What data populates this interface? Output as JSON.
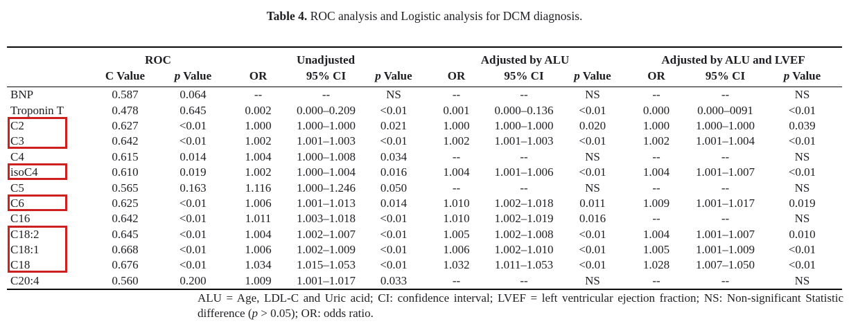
{
  "title": {
    "bold": "Table 4.",
    "rest": " ROC analysis and Logistic analysis for DCM diagnosis."
  },
  "table": {
    "group_headers": [
      {
        "label": "ROC",
        "span": 2
      },
      {
        "label": "Unadjusted",
        "span": 3
      },
      {
        "label": "Adjusted by ALU",
        "span": 3
      },
      {
        "label": "Adjusted by ALU and LVEF",
        "span": 3
      }
    ],
    "sub_headers": [
      "C Value",
      "p Value",
      "OR",
      "95% CI",
      "p Value",
      "OR",
      "95% CI",
      "p Value",
      "OR",
      "95% CI",
      "p Value"
    ],
    "rows": [
      {
        "label": "BNP",
        "values": [
          "0.587",
          "0.064",
          "--",
          "--",
          "NS",
          "--",
          "--",
          "NS",
          "--",
          "--",
          "NS"
        ]
      },
      {
        "label": "Troponin T",
        "values": [
          "0.478",
          "0.645",
          "0.002",
          "0.000–0.209",
          "<0.01",
          "0.001",
          "0.000–0.136",
          "<0.01",
          "0.000",
          "0.000–0091",
          "<0.01"
        ]
      },
      {
        "label": "C2",
        "values": [
          "0.627",
          "<0.01",
          "1.000",
          "1.000–1.000",
          "0.021",
          "1.000",
          "1.000–1.000",
          "0.020",
          "1.000",
          "1.000–1.000",
          "0.039"
        ]
      },
      {
        "label": "C3",
        "values": [
          "0.642",
          "<0.01",
          "1.002",
          "1.001–1.003",
          "<0.01",
          "1.002",
          "1.001–1.003",
          "<0.01",
          "1.002",
          "1.001–1.004",
          "<0.01"
        ]
      },
      {
        "label": "C4",
        "values": [
          "0.615",
          "0.014",
          "1.004",
          "1.000–1.008",
          "0.034",
          "--",
          "--",
          "NS",
          "--",
          "--",
          "NS"
        ]
      },
      {
        "label": "isoC4",
        "values": [
          "0.610",
          "0.019",
          "1.002",
          "1.000–1.004",
          "0.016",
          "1.004",
          "1.001–1.006",
          "<0.01",
          "1.004",
          "1.001–1.007",
          "<0.01"
        ]
      },
      {
        "label": "C5",
        "values": [
          "0.565",
          "0.163",
          "1.116",
          "1.000–1.246",
          "0.050",
          "--",
          "--",
          "NS",
          "--",
          "--",
          "NS"
        ]
      },
      {
        "label": "C6",
        "values": [
          "0.625",
          "<0.01",
          "1.006",
          "1.001–1.013",
          "0.014",
          "1.010",
          "1.002–1.018",
          "0.011",
          "1.009",
          "1.001–1.017",
          "0.019"
        ]
      },
      {
        "label": "C16",
        "values": [
          "0.642",
          "<0.01",
          "1.011",
          "1.003–1.018",
          "<0.01",
          "1.010",
          "1.002–1.019",
          "0.016",
          "--",
          "--",
          "NS"
        ]
      },
      {
        "label": "C18:2",
        "values": [
          "0.645",
          "<0.01",
          "1.004",
          "1.002–1.007",
          "<0.01",
          "1.005",
          "1.002–1.008",
          "<0.01",
          "1.004",
          "1.001–1.007",
          "0.010"
        ]
      },
      {
        "label": "C18:1",
        "values": [
          "0.668",
          "<0.01",
          "1.006",
          "1.002–1.009",
          "<0.01",
          "1.006",
          "1.002–1.010",
          "<0.01",
          "1.005",
          "1.001–1.009",
          "<0.01"
        ]
      },
      {
        "label": "C18",
        "values": [
          "0.676",
          "<0.01",
          "1.034",
          "1.015–1.053",
          "<0.01",
          "1.032",
          "1.011–1.053",
          "<0.01",
          "1.028",
          "1.007–1.050",
          "<0.01"
        ]
      },
      {
        "label": "C20:4",
        "values": [
          "0.560",
          "0.200",
          "1.009",
          "1.001–1.017",
          "0.033",
          "--",
          "--",
          "NS",
          "--",
          "--",
          "NS"
        ]
      }
    ],
    "highlight_boxes": [
      {
        "rows": [
          "C2",
          "C3"
        ]
      },
      {
        "rows": [
          "isoC4"
        ]
      },
      {
        "rows": [
          "C6"
        ]
      },
      {
        "rows": [
          "C18:2",
          "C18:1",
          "C18"
        ]
      }
    ],
    "highlight_color": "#cf2020"
  },
  "footnote": {
    "before_p": "ALU = Age, LDL-C and Uric acid; CI: confidence interval; LVEF = left ventricular ejection fraction; NS: Non-significant Statistic difference (",
    "p": "p",
    "after_p": " > 0.05); OR: odds ratio."
  }
}
